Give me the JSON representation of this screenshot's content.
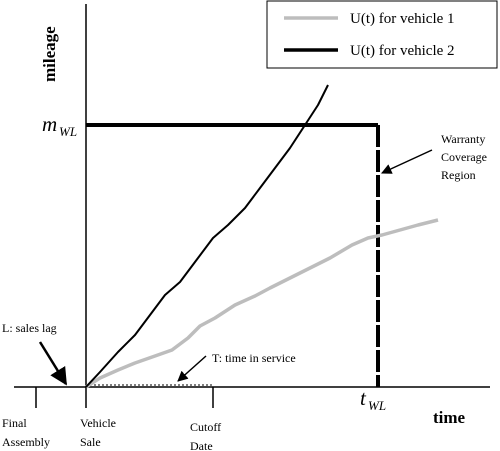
{
  "legend": {
    "items": [
      {
        "label": "U(t) for vehicle 1",
        "color": "#bdbdbd"
      },
      {
        "label": "U(t) for vehicle 2",
        "color": "#000000"
      }
    ]
  },
  "axes": {
    "y_label": "mileage",
    "x_label": "time"
  },
  "markers": {
    "m_wl": {
      "main": "m",
      "sub": "WL"
    },
    "t_wl": {
      "main": "t",
      "sub": "WL"
    }
  },
  "annotations": {
    "warranty": [
      "Warranty",
      "Coverage",
      "Region"
    ],
    "sales_lag": "L: sales lag",
    "time_in_service": "T: time in service"
  },
  "timeline": {
    "final_assembly": [
      "Final",
      "Assembly"
    ],
    "vehicle_sale": [
      "Vehicle",
      "Sale"
    ],
    "cutoff_date": [
      "Cutoff",
      "Date"
    ]
  }
}
